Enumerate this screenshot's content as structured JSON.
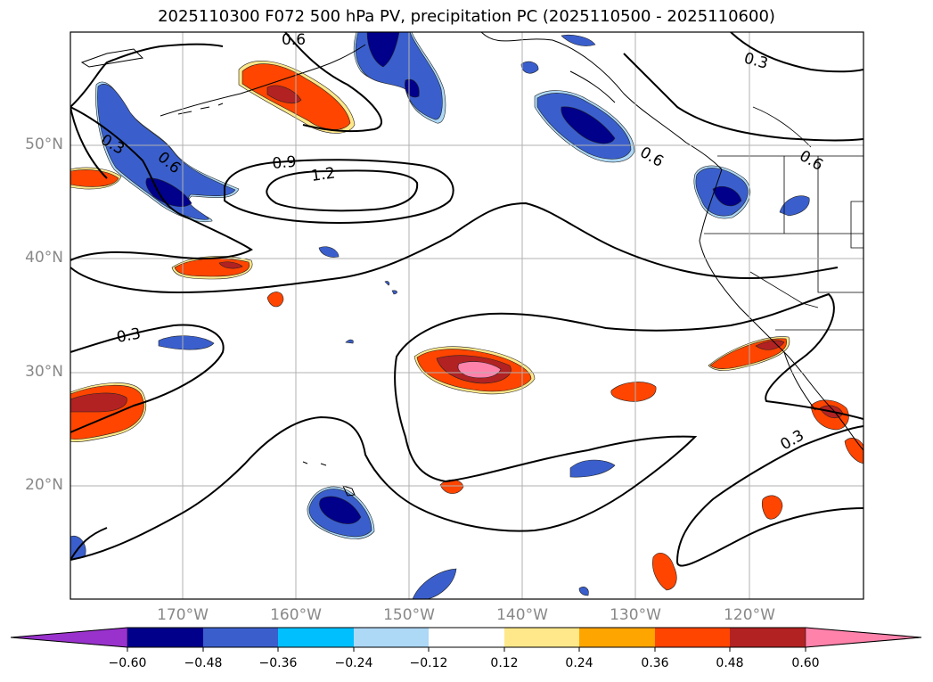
{
  "title": "2025110300 F072 500 hPa PV, precipitation PC (2025110500 - 2025110600)",
  "map": {
    "lat_labels": [
      "50°N",
      "40°N",
      "30°N",
      "20°N"
    ],
    "lon_labels": [
      "170°W",
      "160°W",
      "150°W",
      "140°W",
      "130°W",
      "120°W"
    ],
    "contour_labels": [
      "0.6",
      "0.3",
      "0.3",
      "0.6",
      "0.9",
      "1.2",
      "0.3",
      "0.6",
      "0.6",
      "0.3"
    ]
  },
  "colorbar": {
    "ticks": [
      "−0.60",
      "−0.48",
      "−0.36",
      "−0.24",
      "−0.12",
      "0.12",
      "0.24",
      "0.36",
      "0.48",
      "0.60"
    ],
    "colors": [
      "#9932CC",
      "#00008B",
      "#3A5FCD",
      "#00BFFF",
      "#ADD8F6",
      "#FFFFFF",
      "#FFE88A",
      "#FFA500",
      "#FF4500",
      "#B22222",
      "#FF82AB"
    ]
  }
}
